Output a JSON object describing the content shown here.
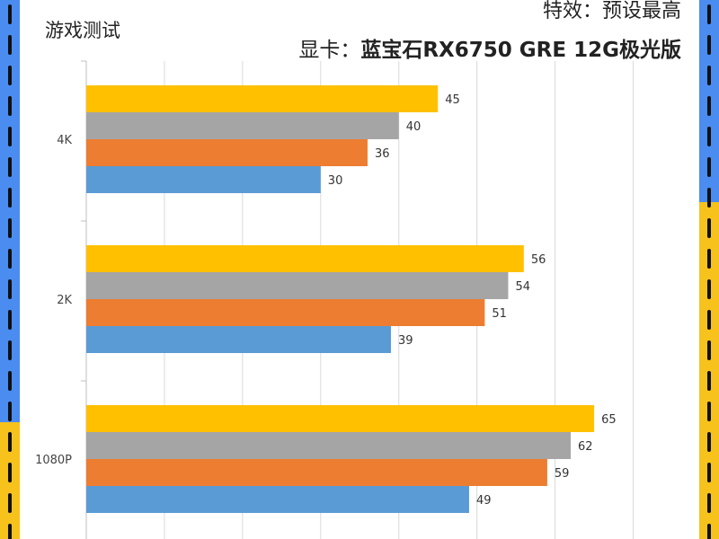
{
  "header": {
    "game_test": "游戏测试",
    "effect": "特效：预设最高",
    "gpu_prefix": "显卡：",
    "gpu_name": "蓝宝石RX6750 GRE 12G极光版"
  },
  "colors": {
    "frame_left": "#4a8cf0",
    "frame_right": "#4a8cf0",
    "frame_accent": "#f6c21b",
    "grid": "#d9d9d9",
    "axis": "#bfbfbf"
  },
  "chart_data": {
    "type": "bar",
    "orientation": "horizontal",
    "categories": [
      "4K",
      "2K",
      "1080P"
    ],
    "series": [
      {
        "values": [
          45,
          56,
          65
        ],
        "color": "#ffc000"
      },
      {
        "values": [
          40,
          54,
          62
        ],
        "color": "#a5a5a5"
      },
      {
        "values": [
          36,
          51,
          59
        ],
        "color": "#ed7d31"
      },
      {
        "values": [
          30,
          39,
          49
        ],
        "color": "#5b9bd5"
      }
    ],
    "xlim": [
      0,
      75
    ],
    "x_gridlines": [
      10,
      20,
      30,
      40,
      50,
      60,
      70
    ],
    "grid": true,
    "legend": "none",
    "title": "",
    "xlabel": "",
    "ylabel": ""
  }
}
